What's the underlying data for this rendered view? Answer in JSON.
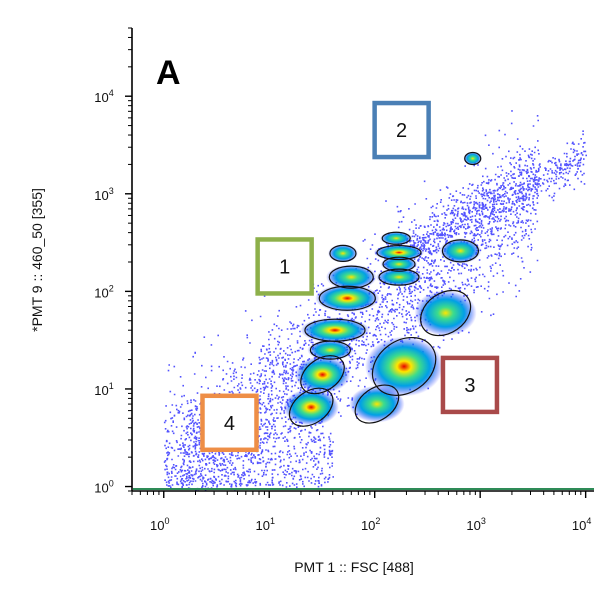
{
  "chart_data": {
    "type": "scatter",
    "panel_label": "A",
    "xlabel": "PMT 1 :: FSC [488]",
    "ylabel": "*PMT 9 :: 460_50 [355]",
    "x_scale": "log",
    "y_scale": "log",
    "xlim": [
      0.5,
      12000
    ],
    "ylim": [
      0.9,
      50000
    ],
    "x_ticks": [
      {
        "value": 1,
        "base": "10",
        "exp": "0"
      },
      {
        "value": 10,
        "base": "10",
        "exp": "1"
      },
      {
        "value": 100,
        "base": "10",
        "exp": "2"
      },
      {
        "value": 1000,
        "base": "10",
        "exp": "3"
      },
      {
        "value": 10000,
        "base": "10",
        "exp": "4"
      }
    ],
    "y_ticks": [
      {
        "value": 1,
        "base": "10",
        "exp": "0"
      },
      {
        "value": 10,
        "base": "10",
        "exp": "1"
      },
      {
        "value": 100,
        "base": "10",
        "exp": "2"
      },
      {
        "value": 1000,
        "base": "10",
        "exp": "3"
      },
      {
        "value": 10000,
        "base": "10",
        "exp": "4"
      }
    ],
    "colors": {
      "density_low": "#1a1aff",
      "density_mid": "#00c8c8",
      "density_high": "#ffe600",
      "density_peak": "#e60000",
      "gate_outline": "#111111",
      "axis": "#000000",
      "x_axis_baseline": "#2e8b57"
    },
    "density_clusters": [
      {
        "x": 25,
        "y": 6.5,
        "intensity": 0.9
      },
      {
        "x": 32,
        "y": 14,
        "intensity": 1.0
      },
      {
        "x": 38,
        "y": 25,
        "intensity": 0.6
      },
      {
        "x": 42,
        "y": 40,
        "intensity": 0.8
      },
      {
        "x": 55,
        "y": 85,
        "intensity": 0.85
      },
      {
        "x": 60,
        "y": 140,
        "intensity": 0.6
      },
      {
        "x": 50,
        "y": 245,
        "intensity": 0.5
      },
      {
        "x": 105,
        "y": 7,
        "intensity": 0.5
      },
      {
        "x": 190,
        "y": 17,
        "intensity": 0.9
      },
      {
        "x": 470,
        "y": 60,
        "intensity": 0.6
      },
      {
        "x": 170,
        "y": 140,
        "intensity": 0.55
      },
      {
        "x": 170,
        "y": 190,
        "intensity": 0.6
      },
      {
        "x": 170,
        "y": 250,
        "intensity": 1.0
      },
      {
        "x": 160,
        "y": 350,
        "intensity": 0.5
      },
      {
        "x": 650,
        "y": 260,
        "intensity": 0.7
      },
      {
        "x": 850,
        "y": 2300,
        "intensity": 0.6
      }
    ],
    "gates": [
      {
        "x": 25,
        "y": 6.5,
        "rx": 24,
        "ry": 16
      },
      {
        "x": 32,
        "y": 14,
        "rx": 24,
        "ry": 16
      },
      {
        "x": 38,
        "y": 25,
        "rx": 20,
        "ry": 9
      },
      {
        "x": 42,
        "y": 40,
        "rx": 30,
        "ry": 11
      },
      {
        "x": 55,
        "y": 85,
        "rx": 28,
        "ry": 12
      },
      {
        "x": 60,
        "y": 140,
        "rx": 22,
        "ry": 11
      },
      {
        "x": 50,
        "y": 245,
        "rx": 13,
        "ry": 8
      },
      {
        "x": 105,
        "y": 7,
        "rx": 24,
        "ry": 16
      },
      {
        "x": 190,
        "y": 17,
        "rx": 34,
        "ry": 26
      },
      {
        "x": 470,
        "y": 60,
        "rx": 27,
        "ry": 20
      },
      {
        "x": 170,
        "y": 140,
        "rx": 20,
        "ry": 8
      },
      {
        "x": 170,
        "y": 190,
        "rx": 16,
        "ry": 7
      },
      {
        "x": 170,
        "y": 250,
        "rx": 22,
        "ry": 7
      },
      {
        "x": 160,
        "y": 350,
        "rx": 14,
        "ry": 6
      },
      {
        "x": 650,
        "y": 260,
        "rx": 18,
        "ry": 11
      },
      {
        "x": 850,
        "y": 2300,
        "rx": 8,
        "ry": 6
      }
    ],
    "annotations": [
      {
        "label": "1",
        "x": 14,
        "y": 180,
        "color": "#8db04a"
      },
      {
        "label": "2",
        "x": 180,
        "y": 4500,
        "color": "#4a7fb5"
      },
      {
        "label": "3",
        "x": 800,
        "y": 11,
        "color": "#a94a4a"
      },
      {
        "label": "4",
        "x": 4.2,
        "y": 4.5,
        "color": "#ee8e46"
      }
    ]
  }
}
